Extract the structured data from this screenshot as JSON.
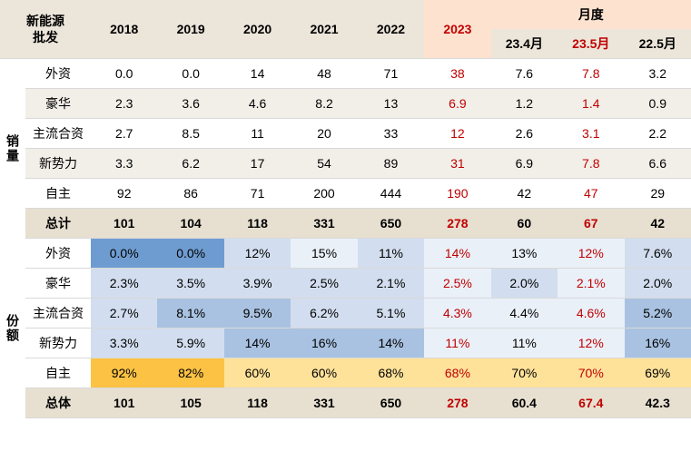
{
  "colors": {
    "header_bg": "#ece5da",
    "header_month_bg": "#fde2cf",
    "red_text": "#c00000",
    "black_text": "#333333",
    "row_stripe": "#f2efe9",
    "total_bg": "#e7e0d1",
    "share_blue_dark": "#6f9cd0",
    "share_blue_mid": "#a9c2e1",
    "share_blue_light": "#d2deef",
    "share_blue_vlight": "#eaf0f8",
    "share_orange": "#fcc244",
    "share_orange_light": "#ffe29a",
    "overall_bg": "#e7e0d1"
  },
  "corner_line1": "新能源",
  "corner_line2": "批发",
  "years": [
    "2018",
    "2019",
    "2020",
    "2021",
    "2022",
    "2023"
  ],
  "month_header": "月度",
  "months": [
    "23.4月",
    "23.5月",
    "22.5月"
  ],
  "section1_label": "销量",
  "section2_label": "份额",
  "categories": [
    "外资",
    "豪华",
    "主流合资",
    "新势力",
    "自主"
  ],
  "sales": {
    "外资": [
      "0.0",
      "0.0",
      "14",
      "48",
      "71",
      "38",
      "7.6",
      "7.8",
      "3.2"
    ],
    "豪华": [
      "2.3",
      "3.6",
      "4.6",
      "8.2",
      "13",
      "6.9",
      "1.2",
      "1.4",
      "0.9"
    ],
    "主流合资": [
      "2.7",
      "8.5",
      "11",
      "20",
      "33",
      "12",
      "2.6",
      "3.1",
      "2.2"
    ],
    "新势力": [
      "3.3",
      "6.2",
      "17",
      "54",
      "89",
      "31",
      "6.9",
      "7.8",
      "6.6"
    ],
    "自主": [
      "92",
      "86",
      "71",
      "200",
      "444",
      "190",
      "42",
      "47",
      "29"
    ]
  },
  "sales_total_label": "总计",
  "sales_total": [
    "101",
    "104",
    "118",
    "331",
    "650",
    "278",
    "60",
    "67",
    "42"
  ],
  "share": {
    "外资": [
      "0.0%",
      "0.0%",
      "12%",
      "15%",
      "11%",
      "14%",
      "13%",
      "12%",
      "7.6%"
    ],
    "豪华": [
      "2.3%",
      "3.5%",
      "3.9%",
      "2.5%",
      "2.1%",
      "2.5%",
      "2.0%",
      "2.1%",
      "2.0%"
    ],
    "主流合资": [
      "2.7%",
      "8.1%",
      "9.5%",
      "6.2%",
      "5.1%",
      "4.3%",
      "4.4%",
      "4.6%",
      "5.2%"
    ],
    "新势力": [
      "3.3%",
      "5.9%",
      "14%",
      "16%",
      "14%",
      "11%",
      "11%",
      "12%",
      "16%"
    ],
    "自主": [
      "92%",
      "82%",
      "60%",
      "60%",
      "68%",
      "68%",
      "70%",
      "70%",
      "69%"
    ]
  },
  "share_colors": {
    "外资": [
      "share_blue_dark",
      "share_blue_dark",
      "share_blue_light",
      "share_blue_vlight",
      "share_blue_light",
      "share_blue_vlight",
      "share_blue_vlight",
      "share_blue_vlight",
      "share_blue_light"
    ],
    "豪华": [
      "share_blue_light",
      "share_blue_light",
      "share_blue_light",
      "share_blue_light",
      "share_blue_light",
      "share_blue_vlight",
      "share_blue_light",
      "share_blue_vlight",
      "share_blue_light"
    ],
    "主流合资": [
      "share_blue_light",
      "share_blue_mid",
      "share_blue_mid",
      "share_blue_light",
      "share_blue_light",
      "share_blue_vlight",
      "share_blue_vlight",
      "share_blue_vlight",
      "share_blue_mid"
    ],
    "新势力": [
      "share_blue_light",
      "share_blue_light",
      "share_blue_mid",
      "share_blue_mid",
      "share_blue_mid",
      "share_blue_vlight",
      "share_blue_vlight",
      "share_blue_vlight",
      "share_blue_mid"
    ],
    "自主": [
      "share_orange",
      "share_orange",
      "share_orange_light",
      "share_orange_light",
      "share_orange_light",
      "share_orange_light",
      "share_orange_light",
      "share_orange_light",
      "share_orange_light"
    ]
  },
  "overall_label": "总体",
  "overall": [
    "101",
    "105",
    "118",
    "331",
    "650",
    "278",
    "60.4",
    "67.4",
    "42.3"
  ]
}
